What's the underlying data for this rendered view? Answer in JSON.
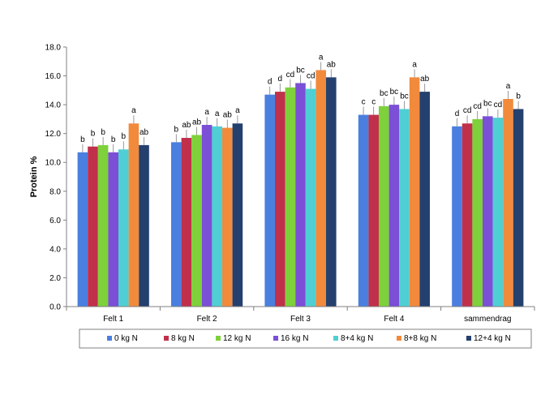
{
  "chart_data": {
    "type": "bar",
    "title": "",
    "xlabel": "",
    "ylabel": "Protein %",
    "ylim": [
      0,
      18
    ],
    "yticks": [
      "0.0",
      "2.0",
      "4.0",
      "6.0",
      "8.0",
      "10.0",
      "12.0",
      "14.0",
      "16.0",
      "18.0"
    ],
    "grid": false,
    "legend_position": "bottom",
    "categories": [
      "Felt 1",
      "Felt 2",
      "Felt 3",
      "Felt 4",
      "sammendrag"
    ],
    "series": [
      {
        "name": "0 kg N",
        "color": "#4A7FE0",
        "values": [
          10.7,
          11.4,
          14.7,
          13.3,
          12.5
        ],
        "labels": [
          "b",
          "b",
          "d",
          "c",
          "d"
        ]
      },
      {
        "name": "8 kg N",
        "color": "#C0304A",
        "values": [
          11.1,
          11.7,
          14.9,
          13.3,
          12.7
        ],
        "labels": [
          "b",
          "ab",
          "d",
          "c",
          "cd"
        ]
      },
      {
        "name": "12 kg N",
        "color": "#7ED13A",
        "values": [
          11.2,
          11.9,
          15.2,
          13.9,
          13.0
        ],
        "labels": [
          "b",
          "ab",
          "cd",
          "bc",
          "cd"
        ]
      },
      {
        "name": "16 kg N",
        "color": "#7B4FD6",
        "values": [
          10.7,
          12.6,
          15.5,
          14.0,
          13.2
        ],
        "labels": [
          "b",
          "a",
          "bc",
          "bc",
          "bc"
        ]
      },
      {
        "name": "8+4 kg N",
        "color": "#4FCFD4",
        "values": [
          10.9,
          12.5,
          15.1,
          13.7,
          13.1
        ],
        "labels": [
          "b",
          "a",
          "cd",
          "bc",
          "cd"
        ]
      },
      {
        "name": "8+8 kg N",
        "color": "#F28A3C",
        "values": [
          12.7,
          12.4,
          16.4,
          15.9,
          14.4
        ],
        "labels": [
          "a",
          "ab",
          "a",
          "a",
          "a"
        ]
      },
      {
        "name": "12+4 kg N",
        "color": "#24406E",
        "values": [
          11.2,
          12.7,
          15.9,
          14.9,
          13.7
        ],
        "labels": [
          "ab",
          "a",
          "ab",
          "ab",
          "b"
        ]
      }
    ]
  }
}
